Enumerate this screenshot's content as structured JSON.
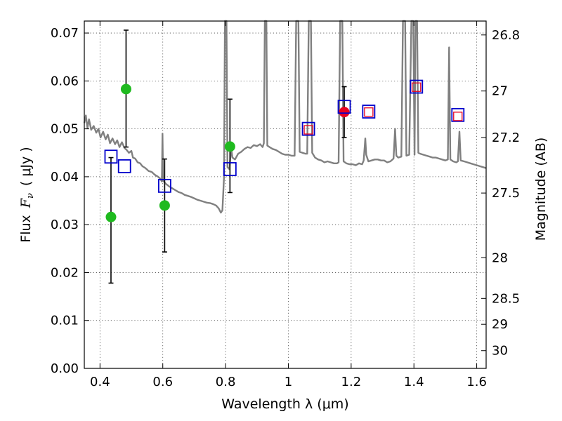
{
  "chart_data": {
    "type": "scatter",
    "title": "",
    "xlabel": "Wavelength  λ (μm)",
    "ylabel_prefix": "Flux",
    "ylabel_symbol": "F",
    "ylabel_symbol_sub": "ν",
    "ylabel_suffix": "( μJy )",
    "ylabel_right": "Magnitude (AB)",
    "xlim": [
      0.35,
      1.63
    ],
    "ylim": [
      0.0,
      0.0725
    ],
    "grid": true,
    "x_ticks": [
      {
        "value": 0.4,
        "label": "0.4"
      },
      {
        "value": 0.6,
        "label": "0.6"
      },
      {
        "value": 0.8,
        "label": "0.8"
      },
      {
        "value": 1.0,
        "label": "1"
      },
      {
        "value": 1.2,
        "label": "1.2"
      },
      {
        "value": 1.4,
        "label": "1.4"
      },
      {
        "value": 1.6,
        "label": "1.6"
      }
    ],
    "y_ticks": [
      {
        "value": 0.0,
        "label": "0.00"
      },
      {
        "value": 0.01,
        "label": "0.01"
      },
      {
        "value": 0.02,
        "label": "0.02"
      },
      {
        "value": 0.03,
        "label": "0.03"
      },
      {
        "value": 0.04,
        "label": "0.04"
      },
      {
        "value": 0.05,
        "label": "0.05"
      },
      {
        "value": 0.06,
        "label": "0.06"
      },
      {
        "value": 0.07,
        "label": "0.07"
      }
    ],
    "right_ticks": [
      {
        "label": "26.8",
        "flux": 0.0696
      },
      {
        "label": "27",
        "flux": 0.0579
      },
      {
        "label": "27.2",
        "flux": 0.0482
      },
      {
        "label": "27.5",
        "flux": 0.0366
      },
      {
        "label": "28",
        "flux": 0.0231
      },
      {
        "label": "28.5",
        "flux": 0.0146
      },
      {
        "label": "29",
        "flux": 0.0092
      },
      {
        "label": "30",
        "flux": 0.0037
      }
    ],
    "series": [
      {
        "name": "Observed photometry (detections)",
        "marker": "filled-circle",
        "color": "#1fba1f",
        "points": [
          {
            "x": 0.435,
            "y": 0.0316,
            "err_low": 0.0178,
            "err_high": 0.044
          },
          {
            "x": 0.483,
            "y": 0.0583,
            "err_low": 0.0462,
            "err_high": 0.0706
          },
          {
            "x": 0.606,
            "y": 0.034,
            "err_low": 0.0243,
            "err_high": 0.0437
          },
          {
            "x": 0.814,
            "y": 0.0463,
            "err_low": 0.0367,
            "err_high": 0.0562
          }
        ]
      },
      {
        "name": "Observed photometry (highlighted)",
        "marker": "filled-circle",
        "color": "#e8001e",
        "points": [
          {
            "x": 1.178,
            "y": 0.0535,
            "err_low": 0.0482,
            "err_high": 0.0588
          }
        ]
      },
      {
        "name": "Model synthetic photometry",
        "marker": "open-square",
        "color": "#0000cc",
        "points": [
          {
            "x": 0.435,
            "y": 0.0442
          },
          {
            "x": 0.478,
            "y": 0.0422
          },
          {
            "x": 0.606,
            "y": 0.0381
          },
          {
            "x": 0.814,
            "y": 0.0416
          },
          {
            "x": 1.064,
            "y": 0.05
          },
          {
            "x": 1.178,
            "y": 0.0546
          },
          {
            "x": 1.256,
            "y": 0.0536
          },
          {
            "x": 1.408,
            "y": 0.0588
          },
          {
            "x": 1.54,
            "y": 0.0529
          }
        ]
      },
      {
        "name": "Observed upper limits",
        "marker": "small-open-square",
        "color": "#e8001e",
        "points": [
          {
            "x": 1.064,
            "y": 0.0498
          },
          {
            "x": 1.256,
            "y": 0.0535
          },
          {
            "x": 1.408,
            "y": 0.0587
          },
          {
            "x": 1.54,
            "y": 0.0526
          }
        ]
      }
    ],
    "sed_model": {
      "name": "Best-fit template spectrum",
      "color": "#808080",
      "points": [
        [
          0.35,
          0.0512
        ],
        [
          0.355,
          0.0528
        ],
        [
          0.36,
          0.0502
        ],
        [
          0.365,
          0.052
        ],
        [
          0.372,
          0.0498
        ],
        [
          0.38,
          0.0506
        ],
        [
          0.388,
          0.0492
        ],
        [
          0.395,
          0.05
        ],
        [
          0.402,
          0.0482
        ],
        [
          0.41,
          0.0494
        ],
        [
          0.418,
          0.0478
        ],
        [
          0.425,
          0.0488
        ],
        [
          0.432,
          0.047
        ],
        [
          0.44,
          0.048
        ],
        [
          0.448,
          0.0468
        ],
        [
          0.455,
          0.0476
        ],
        [
          0.462,
          0.0462
        ],
        [
          0.47,
          0.0472
        ],
        [
          0.478,
          0.046
        ],
        [
          0.485,
          0.0456
        ],
        [
          0.492,
          0.045
        ],
        [
          0.5,
          0.0454
        ],
        [
          0.505,
          0.044
        ],
        [
          0.512,
          0.0438
        ],
        [
          0.52,
          0.043
        ],
        [
          0.528,
          0.0428
        ],
        [
          0.535,
          0.0422
        ],
        [
          0.545,
          0.0418
        ],
        [
          0.555,
          0.0412
        ],
        [
          0.565,
          0.041
        ],
        [
          0.575,
          0.0404
        ],
        [
          0.585,
          0.04
        ],
        [
          0.592,
          0.0396
        ],
        [
          0.597,
          0.039
        ],
        [
          0.599,
          0.049
        ],
        [
          0.601,
          0.0392
        ],
        [
          0.61,
          0.0385
        ],
        [
          0.62,
          0.038
        ],
        [
          0.63,
          0.0376
        ],
        [
          0.64,
          0.0372
        ],
        [
          0.65,
          0.0368
        ],
        [
          0.66,
          0.0366
        ],
        [
          0.67,
          0.0362
        ],
        [
          0.68,
          0.036
        ],
        [
          0.69,
          0.0358
        ],
        [
          0.7,
          0.0355
        ],
        [
          0.71,
          0.0352
        ],
        [
          0.72,
          0.035
        ],
        [
          0.73,
          0.0348
        ],
        [
          0.74,
          0.0346
        ],
        [
          0.75,
          0.0345
        ],
        [
          0.76,
          0.0343
        ],
        [
          0.77,
          0.034
        ],
        [
          0.778,
          0.0334
        ],
        [
          0.785,
          0.0325
        ],
        [
          0.79,
          0.033
        ],
        [
          0.795,
          0.04
        ],
        [
          0.798,
          0.0725
        ],
        [
          0.803,
          0.0725
        ],
        [
          0.806,
          0.042
        ],
        [
          0.812,
          0.0416
        ],
        [
          0.818,
          0.046
        ],
        [
          0.822,
          0.044
        ],
        [
          0.83,
          0.0436
        ],
        [
          0.84,
          0.0448
        ],
        [
          0.85,
          0.0452
        ],
        [
          0.86,
          0.0458
        ],
        [
          0.87,
          0.0462
        ],
        [
          0.88,
          0.046
        ],
        [
          0.89,
          0.0466
        ],
        [
          0.9,
          0.0464
        ],
        [
          0.91,
          0.0468
        ],
        [
          0.918,
          0.0462
        ],
        [
          0.922,
          0.047
        ],
        [
          0.925,
          0.0725
        ],
        [
          0.93,
          0.0725
        ],
        [
          0.933,
          0.0465
        ],
        [
          0.94,
          0.0462
        ],
        [
          0.95,
          0.0458
        ],
        [
          0.96,
          0.0456
        ],
        [
          0.97,
          0.0452
        ],
        [
          0.98,
          0.0448
        ],
        [
          0.99,
          0.0446
        ],
        [
          1.0,
          0.0446
        ],
        [
          1.01,
          0.0444
        ],
        [
          1.02,
          0.0444
        ],
        [
          1.025,
          0.0725
        ],
        [
          1.032,
          0.0725
        ],
        [
          1.036,
          0.0452
        ],
        [
          1.045,
          0.045
        ],
        [
          1.055,
          0.0448
        ],
        [
          1.06,
          0.0448
        ],
        [
          1.065,
          0.0725
        ],
        [
          1.072,
          0.0725
        ],
        [
          1.076,
          0.045
        ],
        [
          1.085,
          0.044
        ],
        [
          1.095,
          0.0436
        ],
        [
          1.105,
          0.0434
        ],
        [
          1.115,
          0.043
        ],
        [
          1.125,
          0.0432
        ],
        [
          1.135,
          0.043
        ],
        [
          1.145,
          0.0428
        ],
        [
          1.155,
          0.0428
        ],
        [
          1.16,
          0.043
        ],
        [
          1.165,
          0.0725
        ],
        [
          1.172,
          0.0725
        ],
        [
          1.176,
          0.0432
        ],
        [
          1.185,
          0.0428
        ],
        [
          1.195,
          0.0426
        ],
        [
          1.205,
          0.0426
        ],
        [
          1.215,
          0.0424
        ],
        [
          1.225,
          0.0428
        ],
        [
          1.235,
          0.0426
        ],
        [
          1.24,
          0.0434
        ],
        [
          1.245,
          0.048
        ],
        [
          1.248,
          0.0446
        ],
        [
          1.255,
          0.0432
        ],
        [
          1.265,
          0.0434
        ],
        [
          1.275,
          0.0436
        ],
        [
          1.285,
          0.0436
        ],
        [
          1.295,
          0.0434
        ],
        [
          1.305,
          0.0434
        ],
        [
          1.315,
          0.043
        ],
        [
          1.325,
          0.0432
        ],
        [
          1.335,
          0.0438
        ],
        [
          1.34,
          0.05
        ],
        [
          1.344,
          0.0444
        ],
        [
          1.35,
          0.044
        ],
        [
          1.36,
          0.0442
        ],
        [
          1.365,
          0.0725
        ],
        [
          1.372,
          0.0725
        ],
        [
          1.376,
          0.0444
        ],
        [
          1.385,
          0.0446
        ],
        [
          1.392,
          0.0725
        ],
        [
          1.398,
          0.0725
        ],
        [
          1.402,
          0.0446
        ],
        [
          1.405,
          0.0725
        ],
        [
          1.41,
          0.0725
        ],
        [
          1.414,
          0.045
        ],
        [
          1.42,
          0.0448
        ],
        [
          1.43,
          0.0446
        ],
        [
          1.44,
          0.0444
        ],
        [
          1.45,
          0.0442
        ],
        [
          1.46,
          0.044
        ],
        [
          1.47,
          0.044
        ],
        [
          1.48,
          0.0438
        ],
        [
          1.49,
          0.0436
        ],
        [
          1.5,
          0.0434
        ],
        [
          1.508,
          0.0436
        ],
        [
          1.512,
          0.067
        ],
        [
          1.516,
          0.0436
        ],
        [
          1.525,
          0.0432
        ],
        [
          1.535,
          0.043
        ],
        [
          1.54,
          0.0432
        ],
        [
          1.545,
          0.0494
        ],
        [
          1.549,
          0.0434
        ],
        [
          1.56,
          0.0432
        ],
        [
          1.57,
          0.043
        ],
        [
          1.58,
          0.0428
        ],
        [
          1.59,
          0.0426
        ],
        [
          1.6,
          0.0424
        ],
        [
          1.61,
          0.0422
        ],
        [
          1.62,
          0.042
        ],
        [
          1.63,
          0.0418
        ]
      ]
    }
  }
}
